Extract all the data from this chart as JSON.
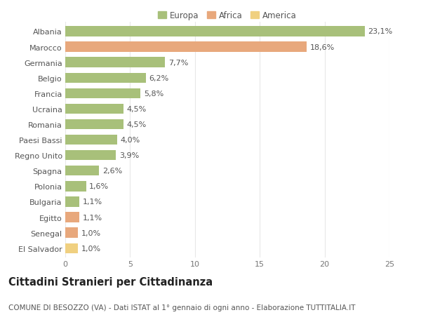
{
  "categories": [
    "Albania",
    "Marocco",
    "Germania",
    "Belgio",
    "Francia",
    "Ucraina",
    "Romania",
    "Paesi Bassi",
    "Regno Unito",
    "Spagna",
    "Polonia",
    "Bulgaria",
    "Egitto",
    "Senegal",
    "El Salvador"
  ],
  "values": [
    23.1,
    18.6,
    7.7,
    6.2,
    5.8,
    4.5,
    4.5,
    4.0,
    3.9,
    2.6,
    1.6,
    1.1,
    1.1,
    1.0,
    1.0
  ],
  "labels": [
    "23,1%",
    "18,6%",
    "7,7%",
    "6,2%",
    "5,8%",
    "4,5%",
    "4,5%",
    "4,0%",
    "3,9%",
    "2,6%",
    "1,6%",
    "1,1%",
    "1,1%",
    "1,0%",
    "1,0%"
  ],
  "continents": [
    "Europa",
    "Africa",
    "Europa",
    "Europa",
    "Europa",
    "Europa",
    "Europa",
    "Europa",
    "Europa",
    "Europa",
    "Europa",
    "Europa",
    "Africa",
    "Africa",
    "America"
  ],
  "colors": {
    "Europa": "#a8c07a",
    "Africa": "#e8a87c",
    "America": "#f0d080"
  },
  "xlim": [
    0,
    25
  ],
  "xticks": [
    0,
    5,
    10,
    15,
    20,
    25
  ],
  "title": "Cittadini Stranieri per Cittadinanza",
  "subtitle": "COMUNE DI BESOZZO (VA) - Dati ISTAT al 1° gennaio di ogni anno - Elaborazione TUTTITALIA.IT",
  "background_color": "#ffffff",
  "grid_color": "#e8e8e8",
  "bar_height": 0.65,
  "label_fontsize": 8,
  "tick_fontsize": 8,
  "title_fontsize": 10.5,
  "subtitle_fontsize": 7.5
}
